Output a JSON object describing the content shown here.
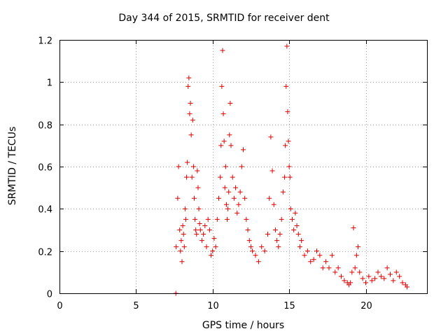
{
  "chart_data": {
    "type": "scatter",
    "title": "Day 344 of 2015, SRMTID for receiver dent",
    "xlabel": "GPS time / hours",
    "ylabel": "SRMTID / TECUs",
    "xlim": [
      0,
      24
    ],
    "ylim": [
      0,
      1.2
    ],
    "xticks": [
      0,
      5,
      10,
      15,
      20
    ],
    "yticks": [
      0,
      0.2,
      0.4,
      0.6,
      0.8,
      1,
      1.2
    ],
    "ytick_labels": [
      "0",
      "0.2",
      "0.4",
      "0.6",
      "0.8",
      "1",
      "1.2"
    ],
    "grid": true,
    "marker": "+",
    "series": [
      {
        "name": "SRMTID",
        "color": "#e00000",
        "x": [
          7.6,
          7.62,
          7.72,
          7.78,
          7.85,
          7.9,
          7.95,
          8.0,
          8.05,
          8.1,
          8.15,
          8.2,
          8.25,
          8.3,
          8.35,
          8.4,
          8.45,
          8.5,
          8.55,
          8.6,
          8.65,
          8.7,
          8.75,
          8.8,
          8.85,
          8.9,
          8.95,
          9.0,
          9.05,
          9.1,
          9.15,
          9.2,
          9.3,
          9.4,
          9.5,
          9.6,
          9.7,
          9.8,
          9.9,
          10.0,
          10.1,
          10.2,
          10.3,
          10.4,
          10.5,
          10.55,
          10.6,
          10.65,
          10.7,
          10.75,
          10.8,
          10.85,
          10.9,
          10.95,
          11.0,
          11.05,
          11.1,
          11.15,
          11.2,
          11.3,
          11.4,
          11.5,
          11.6,
          11.7,
          11.8,
          11.9,
          12.0,
          12.1,
          12.2,
          12.3,
          12.4,
          12.5,
          12.6,
          12.8,
          13.0,
          13.2,
          13.4,
          13.6,
          13.7,
          13.8,
          13.9,
          14.0,
          14.1,
          14.2,
          14.3,
          14.4,
          14.5,
          14.6,
          14.7,
          14.75,
          14.8,
          14.85,
          14.9,
          14.95,
          15.0,
          15.05,
          15.1,
          15.2,
          15.3,
          15.4,
          15.5,
          15.6,
          15.7,
          15.8,
          16.0,
          16.2,
          16.4,
          16.6,
          16.8,
          17.0,
          17.2,
          17.4,
          17.6,
          17.8,
          18.0,
          18.2,
          18.4,
          18.6,
          18.8,
          18.9,
          19.0,
          19.1,
          19.2,
          19.3,
          19.4,
          19.5,
          19.6,
          19.8,
          20.0,
          20.2,
          20.4,
          20.6,
          20.8,
          21.0,
          21.2,
          21.4,
          21.6,
          21.8,
          22.0,
          22.2,
          22.4,
          22.6,
          22.7
        ],
        "y": [
          0.0,
          0.22,
          0.45,
          0.6,
          0.3,
          0.2,
          0.25,
          0.15,
          0.32,
          0.28,
          0.22,
          0.4,
          0.35,
          0.55,
          0.62,
          0.98,
          1.02,
          0.85,
          0.9,
          0.75,
          0.55,
          0.82,
          0.6,
          0.45,
          0.35,
          0.3,
          0.28,
          0.58,
          0.5,
          0.4,
          0.33,
          0.3,
          0.25,
          0.28,
          0.32,
          0.22,
          0.35,
          0.3,
          0.18,
          0.2,
          0.26,
          0.22,
          0.35,
          0.45,
          0.55,
          0.7,
          0.98,
          1.15,
          0.85,
          0.72,
          0.5,
          0.6,
          0.42,
          0.35,
          0.4,
          0.48,
          0.75,
          0.9,
          0.7,
          0.55,
          0.45,
          0.5,
          0.38,
          0.42,
          0.48,
          0.6,
          0.68,
          0.45,
          0.35,
          0.3,
          0.25,
          0.22,
          0.2,
          0.18,
          0.15,
          0.22,
          0.2,
          0.28,
          0.45,
          0.74,
          0.58,
          0.42,
          0.3,
          0.25,
          0.22,
          0.28,
          0.35,
          0.48,
          0.55,
          0.7,
          0.98,
          1.17,
          0.86,
          0.72,
          0.6,
          0.55,
          0.4,
          0.35,
          0.3,
          0.38,
          0.32,
          0.28,
          0.22,
          0.25,
          0.18,
          0.2,
          0.15,
          0.16,
          0.2,
          0.18,
          0.12,
          0.15,
          0.12,
          0.18,
          0.1,
          0.12,
          0.08,
          0.06,
          0.05,
          0.04,
          0.05,
          0.1,
          0.31,
          0.12,
          0.18,
          0.22,
          0.1,
          0.07,
          0.05,
          0.08,
          0.06,
          0.07,
          0.1,
          0.08,
          0.07,
          0.12,
          0.09,
          0.06,
          0.1,
          0.08,
          0.05,
          0.04,
          0.03
        ]
      }
    ]
  }
}
